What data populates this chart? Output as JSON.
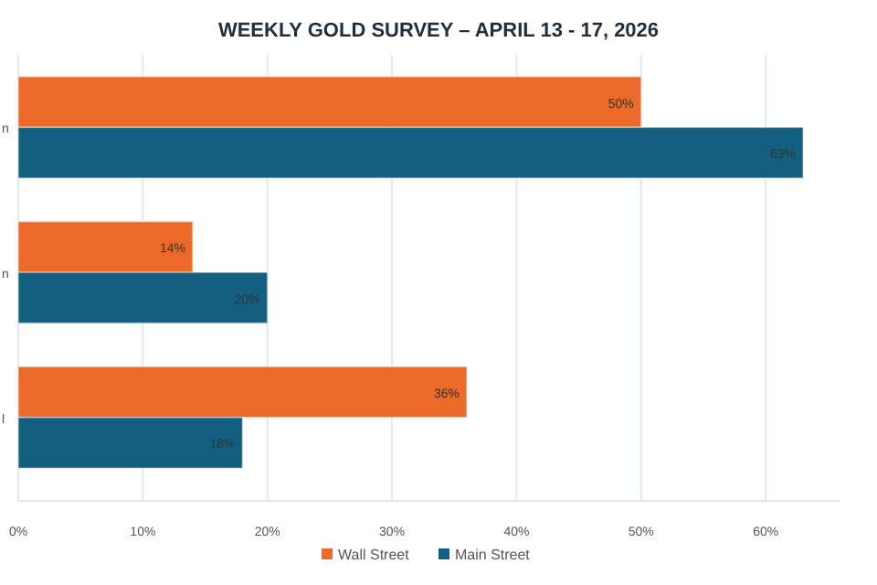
{
  "chart_data": {
    "type": "bar",
    "orientation": "horizontal",
    "title": "WEEKLY GOLD SURVEY – APRIL 13 - 17, 2026",
    "categories": [
      "n",
      "n",
      "l"
    ],
    "series": [
      {
        "name": "Wall Street",
        "color": "#eb6a2a",
        "values": [
          50,
          14,
          36
        ],
        "value_labels": [
          "50%",
          "14%",
          "36%"
        ]
      },
      {
        "name": "Main Street",
        "color": "#135f80",
        "values": [
          63,
          20,
          18
        ],
        "value_labels": [
          "63%",
          "20%",
          "18%"
        ]
      }
    ],
    "xlim": [
      0,
      66
    ],
    "xticks": [
      {
        "value": 0,
        "label": "0%"
      },
      {
        "value": 10,
        "label": "10%"
      },
      {
        "value": 20,
        "label": "20%"
      },
      {
        "value": 30,
        "label": "30%"
      },
      {
        "value": 40,
        "label": "40%"
      },
      {
        "value": 50,
        "label": "50%"
      },
      {
        "value": 60,
        "label": "60%"
      }
    ],
    "grid": "x",
    "legend": "bottom"
  }
}
